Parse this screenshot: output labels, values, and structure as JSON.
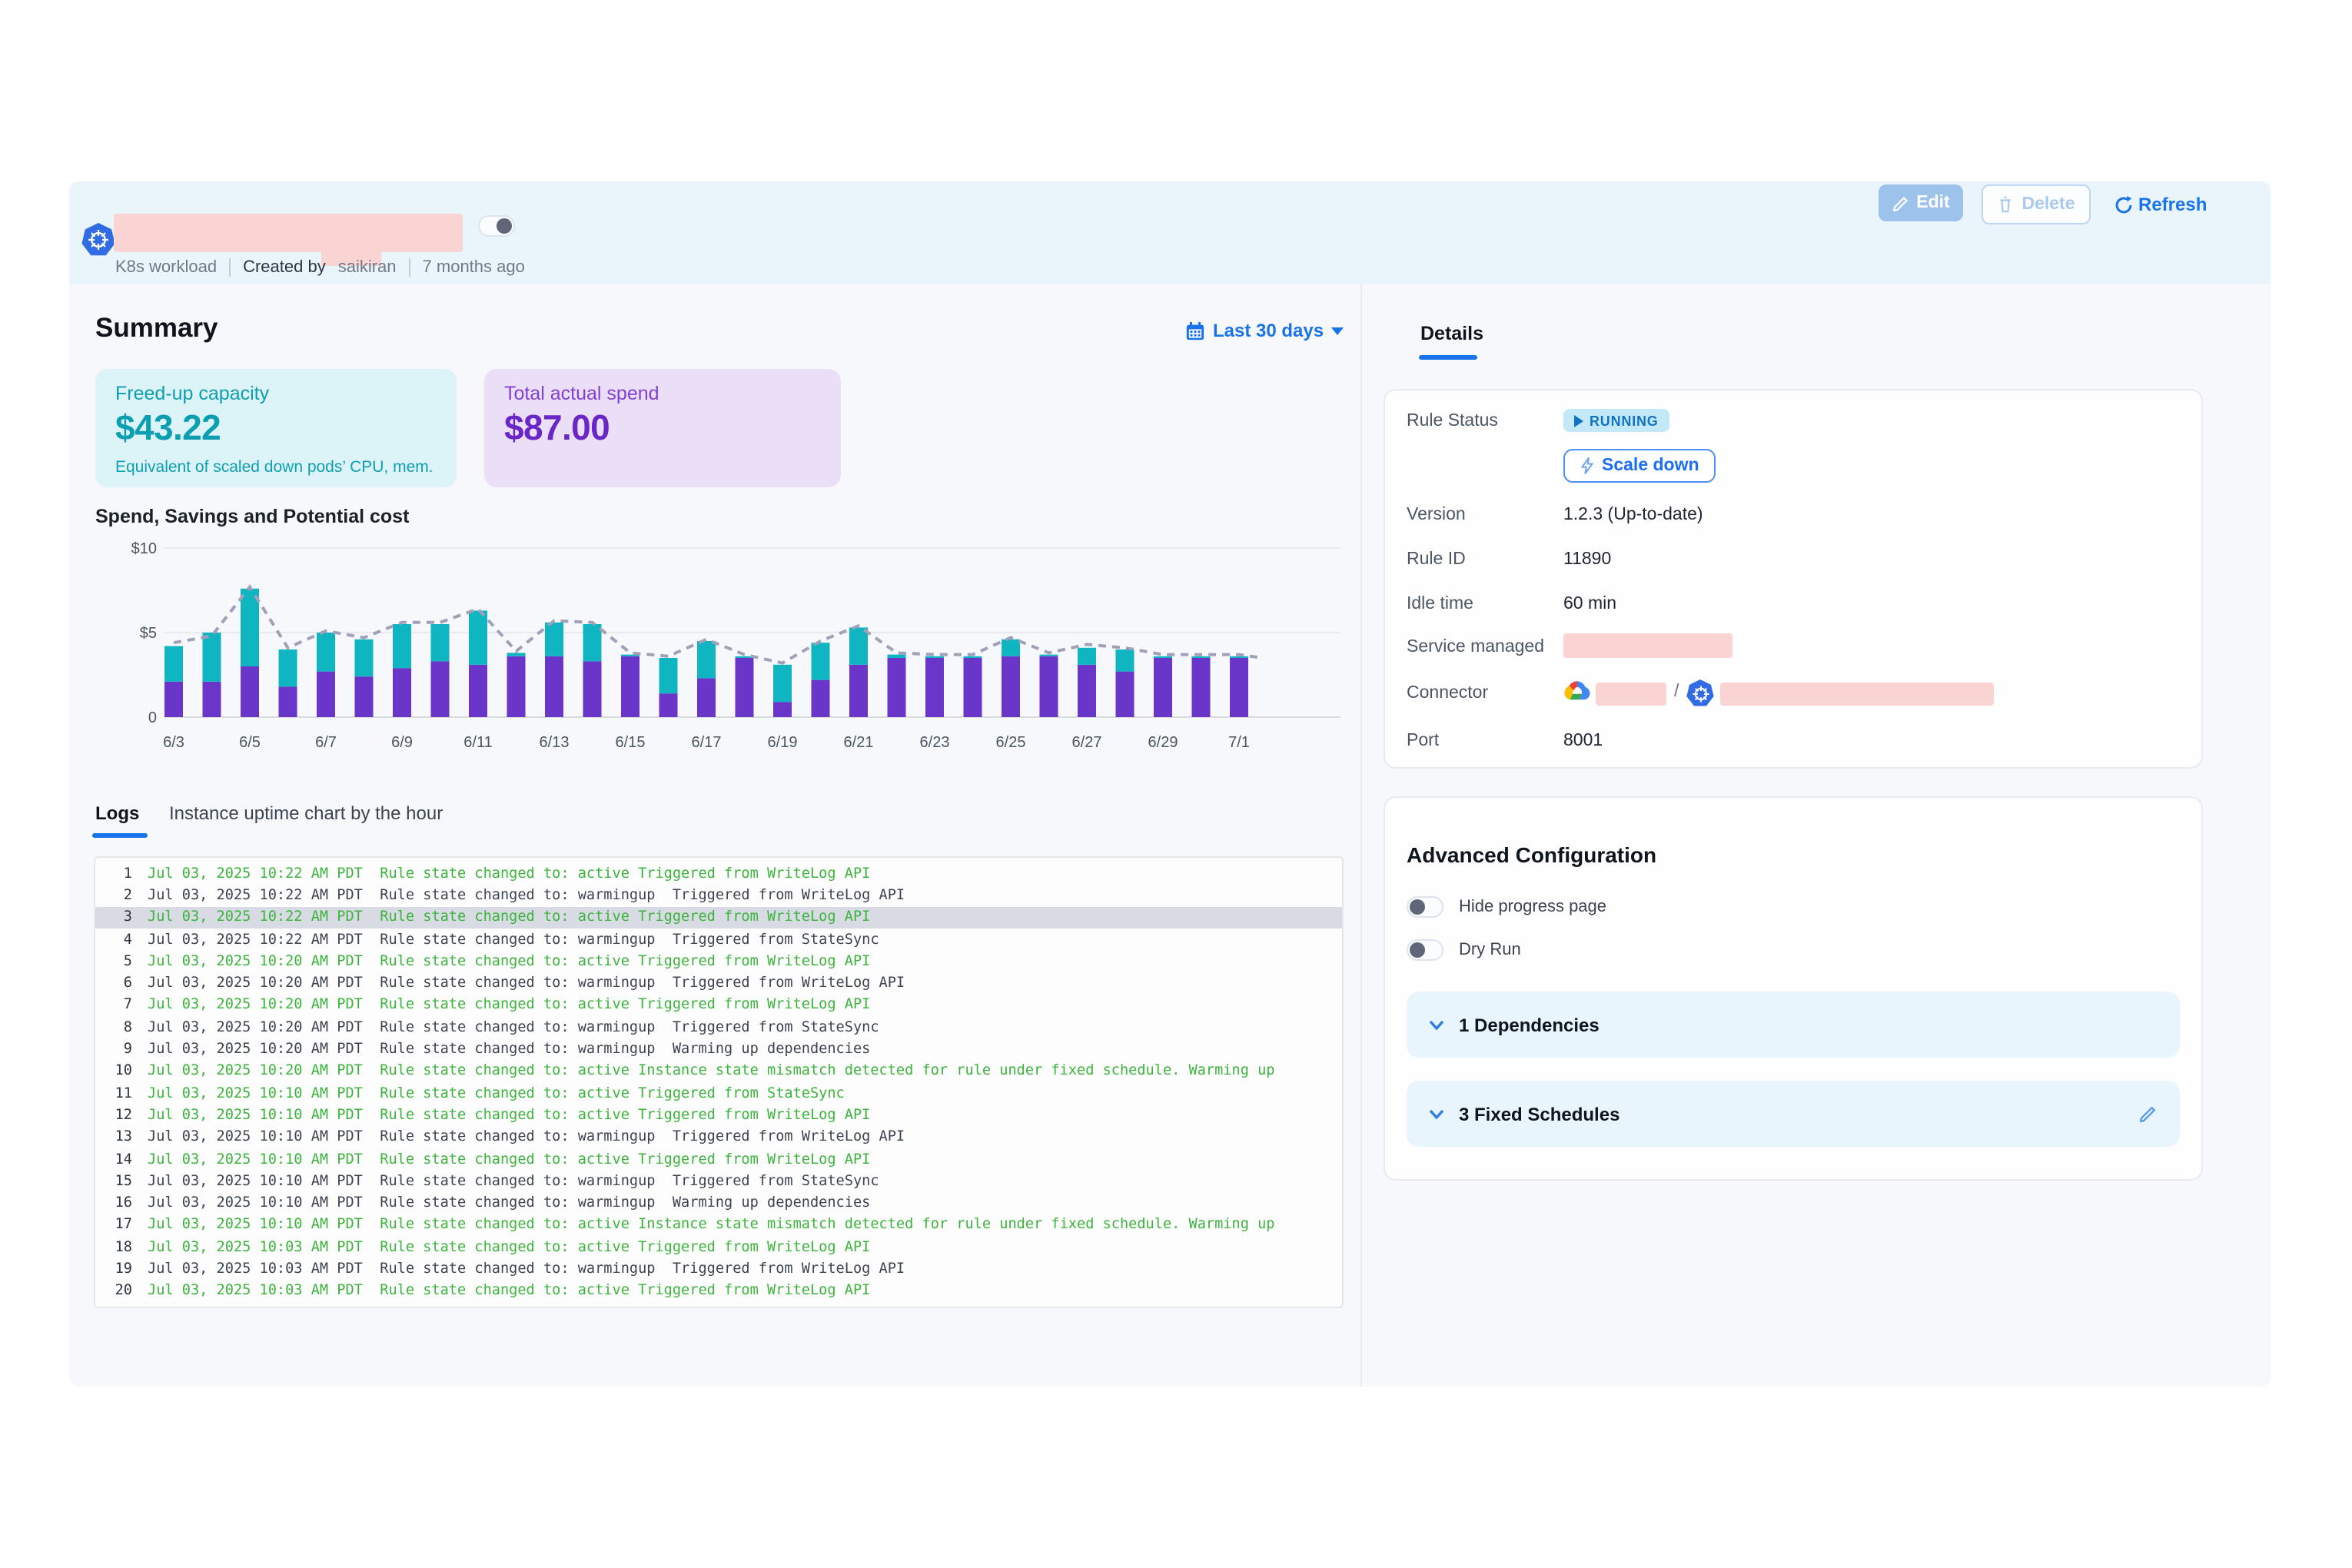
{
  "colors": {
    "accent_blue": "#1a73e8",
    "teal": "#0fb6c2",
    "purple": "#6936c9",
    "log_green": "#3cb43c",
    "redaction_pink": "#fad3d3",
    "band_blue": "#e9f5fb",
    "running_badge_bg": "#c3e9f9",
    "running_badge_text": "#1273c4"
  },
  "header": {
    "workload_type": "K8s workload",
    "created_by_label": "Created by",
    "created_by": "saikiran",
    "created_ago": "7 months ago",
    "edit_label": "Edit",
    "delete_label": "Delete",
    "refresh_label": "Refresh"
  },
  "summary": {
    "title": "Summary",
    "date_filter": "Last 30 days",
    "cards": {
      "capacity": {
        "label": "Freed-up capacity",
        "value": "$43.22",
        "note": "Equivalent of scaled down pods’ CPU, mem."
      },
      "spend": {
        "label": "Total actual spend",
        "value": "$87.00"
      }
    }
  },
  "chart_data": {
    "type": "bar",
    "stacked": true,
    "title": "Spend, Savings and Potential cost",
    "x": [
      "6/3",
      "6/4",
      "6/5",
      "6/6",
      "6/7",
      "6/8",
      "6/9",
      "6/10",
      "6/11",
      "6/12",
      "6/13",
      "6/14",
      "6/15",
      "6/16",
      "6/17",
      "6/18",
      "6/19",
      "6/20",
      "6/21",
      "6/22",
      "6/23",
      "6/24",
      "6/25",
      "6/26",
      "6/27",
      "6/28",
      "6/29",
      "6/30",
      "7/1"
    ],
    "series": [
      {
        "name": "Spend",
        "type": "bar",
        "color": "#6936c9",
        "values": [
          2.1,
          2.1,
          3.0,
          1.8,
          2.7,
          2.4,
          2.9,
          3.3,
          3.1,
          3.6,
          3.6,
          3.3,
          3.6,
          1.4,
          2.3,
          3.5,
          0.9,
          2.2,
          3.1,
          3.5,
          3.5,
          3.5,
          3.6,
          3.6,
          3.1,
          2.7,
          3.5,
          3.5,
          3.5
        ]
      },
      {
        "name": "Savings",
        "type": "bar",
        "color": "#0fb6c2",
        "values": [
          2.1,
          2.9,
          4.6,
          2.2,
          2.3,
          2.2,
          2.6,
          2.2,
          3.2,
          0.2,
          2.0,
          2.2,
          0.1,
          2.1,
          2.2,
          0.1,
          2.2,
          2.2,
          2.2,
          0.2,
          0.1,
          0.1,
          1.0,
          0.1,
          1.0,
          1.3,
          0.1,
          0.1,
          0.1
        ]
      },
      {
        "name": "Potential cost",
        "type": "line",
        "style": "dashed",
        "color": "#a29fb8",
        "values": [
          4.4,
          4.8,
          7.7,
          4.1,
          5.1,
          4.7,
          5.6,
          5.6,
          6.4,
          3.9,
          5.7,
          5.6,
          3.8,
          3.6,
          4.6,
          3.7,
          3.2,
          4.5,
          5.4,
          3.8,
          3.7,
          3.7,
          4.7,
          3.8,
          4.3,
          4.1,
          3.7,
          3.7,
          3.7
        ]
      }
    ],
    "ylim": [
      0,
      10
    ],
    "yticks": [
      {
        "v": 0,
        "label": "0"
      },
      {
        "v": 5,
        "label": "$5"
      },
      {
        "v": 10,
        "label": "$10"
      }
    ],
    "x_tick_every": 2,
    "grid": true,
    "legend": "none"
  },
  "tabs": {
    "logs": "Logs",
    "uptime": "Instance uptime chart by the hour"
  },
  "logs": [
    {
      "n": "1",
      "t": "Jul 03, 2025 10:22 AM PDT  Rule state changed to: active Triggered from WriteLog API",
      "c": "g",
      "hl": false
    },
    {
      "n": "2",
      "t": "Jul 03, 2025 10:22 AM PDT  Rule state changed to: warmingup  Triggered from WriteLog API",
      "c": "d",
      "hl": false
    },
    {
      "n": "3",
      "t": "Jul 03, 2025 10:22 AM PDT  Rule state changed to: active Triggered from WriteLog API",
      "c": "g",
      "hl": true
    },
    {
      "n": "4",
      "t": "Jul 03, 2025 10:22 AM PDT  Rule state changed to: warmingup  Triggered from StateSync",
      "c": "d",
      "hl": false
    },
    {
      "n": "5",
      "t": "Jul 03, 2025 10:20 AM PDT  Rule state changed to: active Triggered from WriteLog API",
      "c": "g",
      "hl": false
    },
    {
      "n": "6",
      "t": "Jul 03, 2025 10:20 AM PDT  Rule state changed to: warmingup  Triggered from WriteLog API",
      "c": "d",
      "hl": false
    },
    {
      "n": "7",
      "t": "Jul 03, 2025 10:20 AM PDT  Rule state changed to: active Triggered from WriteLog API",
      "c": "g",
      "hl": false
    },
    {
      "n": "8",
      "t": "Jul 03, 2025 10:20 AM PDT  Rule state changed to: warmingup  Triggered from StateSync",
      "c": "d",
      "hl": false
    },
    {
      "n": "9",
      "t": "Jul 03, 2025 10:20 AM PDT  Rule state changed to: warmingup  Warming up dependencies",
      "c": "d",
      "hl": false
    },
    {
      "n": "10",
      "t": "Jul 03, 2025 10:20 AM PDT  Rule state changed to: active Instance state mismatch detected for rule under fixed schedule. Warming up",
      "c": "g",
      "hl": false
    },
    {
      "n": "11",
      "t": "Jul 03, 2025 10:10 AM PDT  Rule state changed to: active Triggered from StateSync",
      "c": "g",
      "hl": false
    },
    {
      "n": "12",
      "t": "Jul 03, 2025 10:10 AM PDT  Rule state changed to: active Triggered from WriteLog API",
      "c": "g",
      "hl": false
    },
    {
      "n": "13",
      "t": "Jul 03, 2025 10:10 AM PDT  Rule state changed to: warmingup  Triggered from WriteLog API",
      "c": "d",
      "hl": false
    },
    {
      "n": "14",
      "t": "Jul 03, 2025 10:10 AM PDT  Rule state changed to: active Triggered from WriteLog API",
      "c": "g",
      "hl": false
    },
    {
      "n": "15",
      "t": "Jul 03, 2025 10:10 AM PDT  Rule state changed to: warmingup  Triggered from StateSync",
      "c": "d",
      "hl": false
    },
    {
      "n": "16",
      "t": "Jul 03, 2025 10:10 AM PDT  Rule state changed to: warmingup  Warming up dependencies",
      "c": "d",
      "hl": false
    },
    {
      "n": "17",
      "t": "Jul 03, 2025 10:10 AM PDT  Rule state changed to: active Instance state mismatch detected for rule under fixed schedule. Warming up",
      "c": "g",
      "hl": false
    },
    {
      "n": "18",
      "t": "Jul 03, 2025 10:03 AM PDT  Rule state changed to: active Triggered from WriteLog API",
      "c": "g",
      "hl": false
    },
    {
      "n": "19",
      "t": "Jul 03, 2025 10:03 AM PDT  Rule state changed to: warmingup  Triggered from WriteLog API",
      "c": "d",
      "hl": false
    },
    {
      "n": "20",
      "t": "Jul 03, 2025 10:03 AM PDT  Rule state changed to: active Triggered from WriteLog API",
      "c": "g",
      "hl": false
    }
  ],
  "details": {
    "tab_label": "Details",
    "rule_status_label": "Rule Status",
    "running_label": "RUNNING",
    "scale_down_label": "Scale down",
    "version_label": "Version",
    "version_value": "1.2.3 (Up-to-date)",
    "rule_id_label": "Rule ID",
    "rule_id_value": "11890",
    "idle_label": "Idle time",
    "idle_value": "60 min",
    "service_label": "Service managed",
    "connector_label": "Connector",
    "connector_separator": "/",
    "port_label": "Port",
    "port_value": "8001"
  },
  "advanced": {
    "title": "Advanced Configuration",
    "toggle_hide_progress": "Hide progress page",
    "toggle_dry_run": "Dry Run",
    "dependencies": "1 Dependencies",
    "fixed_schedules": "3 Fixed Schedules"
  }
}
